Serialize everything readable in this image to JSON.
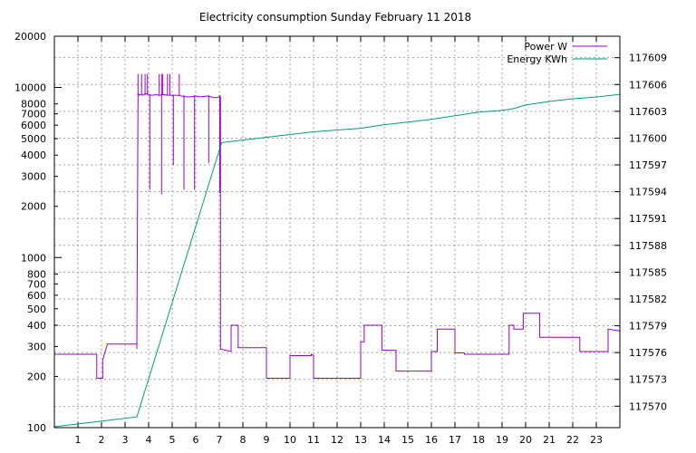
{
  "chart_data": {
    "type": "line",
    "title": "Electricity consumption Sunday February 11 2018",
    "x_ticks": [
      "1",
      "2",
      "3",
      "4",
      "5",
      "6",
      "7",
      "8",
      "9",
      "10",
      "11",
      "12",
      "13",
      "14",
      "15",
      "16",
      "17",
      "18",
      "19",
      "20",
      "21",
      "22",
      "23"
    ],
    "xlim": [
      0,
      24
    ],
    "y_left": {
      "scale": "log",
      "ylim": [
        100,
        20000
      ],
      "tick_values": [
        100,
        200,
        300,
        400,
        500,
        600,
        700,
        800,
        1000,
        2000,
        3000,
        4000,
        5000,
        6000,
        7000,
        8000,
        10000,
        20000
      ],
      "tick_labels": [
        "100",
        "200",
        "300",
        "400",
        "500",
        "600",
        "700",
        "800",
        "1000",
        "2000",
        "3000",
        "4000",
        "5000",
        "6000",
        "7000",
        "8000",
        "10000",
        "20000"
      ]
    },
    "y_right": {
      "scale": "linear",
      "ylim": [
        117567.6,
        117611.4
      ],
      "tick_values": [
        117570,
        117573,
        117576,
        117579,
        117582,
        117585,
        117588,
        117591,
        117594,
        117597,
        117600,
        117603,
        117606,
        117609
      ],
      "tick_labels": [
        "117570",
        "117573",
        "117576",
        "117579",
        "117582",
        "117585",
        "117588",
        "117591",
        "117594",
        "117597",
        "117600",
        "117603",
        "117606",
        "117609"
      ]
    },
    "grid": true,
    "legend_position": "top-right",
    "series": [
      {
        "name": "Power W",
        "axis": "left",
        "color": "#9400d3",
        "x": [
          0,
          1.8,
          1.8,
          2.05,
          2.05,
          2.25,
          2.25,
          3.5,
          3.5,
          3.55,
          3.55,
          3.6,
          3.65,
          3.75,
          3.8,
          3.9,
          4.0,
          4.1,
          4.2,
          4.3,
          4.4,
          4.5,
          4.6,
          4.8,
          5.0,
          5.2,
          5.4,
          5.6,
          5.8,
          6.0,
          6.2,
          6.5,
          6.8,
          7.05,
          7.05,
          7.5,
          7.5,
          7.8,
          7.8,
          9.0,
          9.0,
          10.0,
          10.0,
          10.9,
          10.9,
          11.0,
          11.0,
          13.0,
          13.0,
          13.15,
          13.15,
          13.9,
          13.9,
          14.5,
          14.5,
          16.0,
          16.0,
          16.25,
          16.25,
          17.0,
          17.0,
          17.4,
          17.4,
          19.3,
          19.3,
          19.5,
          19.5,
          19.9,
          19.9,
          20.6,
          20.6,
          21.0,
          21.0,
          22.3,
          22.3,
          23.0,
          23.0,
          23.5,
          23.5,
          24.0
        ],
        "values": [
          270,
          270,
          195,
          195,
          250,
          310,
          310,
          310,
          290,
          9000,
          9200,
          9000,
          9100,
          9000,
          9100,
          9200,
          9100,
          9000,
          9000,
          9100,
          9000,
          9000,
          9100,
          9000,
          9000,
          9000,
          8900,
          8800,
          8800,
          8900,
          8800,
          8900,
          8700,
          8800,
          290,
          280,
          400,
          400,
          295,
          295,
          195,
          195,
          265,
          265,
          270,
          265,
          195,
          195,
          320,
          320,
          400,
          400,
          285,
          285,
          215,
          215,
          280,
          280,
          380,
          380,
          275,
          275,
          270,
          270,
          400,
          400,
          380,
          380,
          470,
          470,
          340,
          340,
          340,
          340,
          280,
          280,
          280,
          280,
          380,
          370
        ]
      },
      {
        "name": "Energy KWh",
        "axis": "right",
        "color": "#009e73",
        "x": [
          0,
          1.9,
          3.5,
          7.1,
          9.0,
          11.0,
          13.0,
          14.0,
          15.0,
          16.0,
          17.0,
          18.0,
          19.0,
          19.5,
          20.0,
          21.0,
          22.0,
          23.0,
          24.0
        ],
        "values": [
          117567.7,
          117568.3,
          117568.8,
          117599.5,
          117600.1,
          117600.7,
          117601.1,
          117601.5,
          117601.8,
          117602.1,
          117602.5,
          117602.9,
          117603.1,
          117603.3,
          117603.7,
          117604.1,
          117604.4,
          117604.6,
          117604.9
        ]
      }
    ]
  }
}
